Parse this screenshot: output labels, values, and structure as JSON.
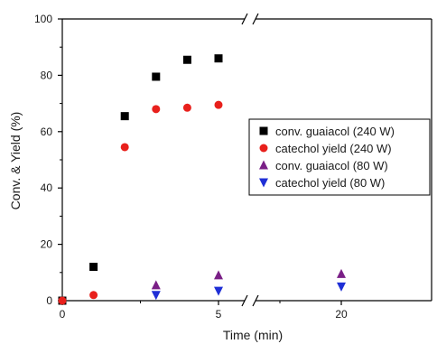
{
  "chart_data": {
    "type": "scatter",
    "xlabel": "Time (min)",
    "ylabel": "Conv. & Yield (%)",
    "x_ticks": [
      "0",
      "5",
      "20"
    ],
    "y_ticks": [
      "0",
      "20",
      "40",
      "60",
      "80",
      "100"
    ],
    "ylim": [
      0,
      100
    ],
    "x_axis_break": "between 5 and 20 min",
    "legend_position": "right",
    "grid": false,
    "series": [
      {
        "name": "conv. guaiacol (240 W)",
        "marker": "square",
        "color": "#000000",
        "points": [
          [
            0,
            0
          ],
          [
            1,
            12
          ],
          [
            2,
            65.5
          ],
          [
            3,
            79.5
          ],
          [
            4,
            85.5
          ],
          [
            5,
            86
          ]
        ]
      },
      {
        "name": "catechol yield (240 W)",
        "marker": "circle",
        "color": "#e8201c",
        "points": [
          [
            0,
            0
          ],
          [
            1,
            2
          ],
          [
            2,
            54.5
          ],
          [
            3,
            68
          ],
          [
            4,
            68.5
          ],
          [
            5,
            69.5
          ]
        ]
      },
      {
        "name": "conv. guaiacol (80 W)",
        "marker": "triangle-up",
        "color": "#7a1f86",
        "points": [
          [
            3,
            5.5
          ],
          [
            5,
            9
          ],
          [
            20,
            9.5
          ]
        ]
      },
      {
        "name": "catechol yield (80 W)",
        "marker": "triangle-down",
        "color": "#1f2fd6",
        "points": [
          [
            3,
            2
          ],
          [
            5,
            3.5
          ],
          [
            20,
            5
          ]
        ]
      }
    ]
  }
}
